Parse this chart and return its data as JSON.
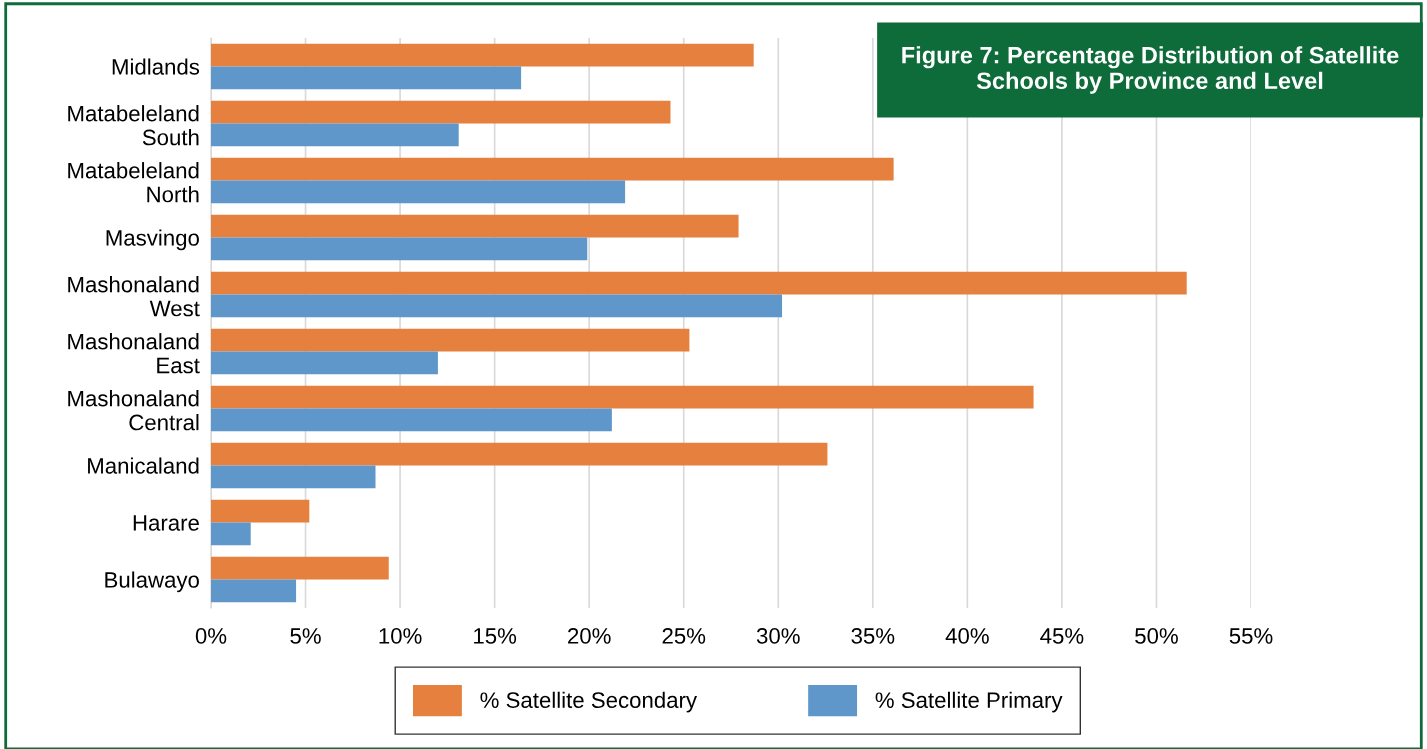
{
  "chart_data": {
    "type": "bar",
    "orientation": "horizontal",
    "title": "Figure 7: Percentage Distribution of Satellite Schools by Province and Level",
    "categories": [
      "Midlands",
      "Matabeleland\nSouth",
      "Matabeleland\nNorth",
      "Masvingo",
      "Mashonaland\nWest",
      "Mashonaland\nEast",
      "Mashonaland\nCentral",
      "Manicaland",
      "Harare",
      "Bulawayo"
    ],
    "series": [
      {
        "name": "% Satellite Secondary",
        "color": "#e5803f",
        "values": [
          28.7,
          24.3,
          36.1,
          27.9,
          51.6,
          25.3,
          43.5,
          32.6,
          5.2,
          9.4
        ]
      },
      {
        "name": "% Satellite Primary",
        "color": "#5f97cb",
        "values": [
          16.4,
          13.1,
          21.9,
          19.9,
          30.2,
          12.0,
          21.2,
          8.7,
          2.1,
          4.5
        ]
      }
    ],
    "xlim": [
      0,
      55
    ],
    "xticks": [
      {
        "value": 0,
        "label": "0%"
      },
      {
        "value": 5,
        "label": "5%"
      },
      {
        "value": 10,
        "label": "10%"
      },
      {
        "value": 15,
        "label": "15%"
      },
      {
        "value": 20,
        "label": "20%"
      },
      {
        "value": 25,
        "label": "25%"
      },
      {
        "value": 30,
        "label": "30%"
      },
      {
        "value": 35,
        "label": "35%"
      },
      {
        "value": 40,
        "label": "40%"
      },
      {
        "value": 45,
        "label": "45%"
      },
      {
        "value": 50,
        "label": "50%"
      },
      {
        "value": 55,
        "label": "55%"
      }
    ],
    "grid": "x",
    "legend": "bottom"
  }
}
